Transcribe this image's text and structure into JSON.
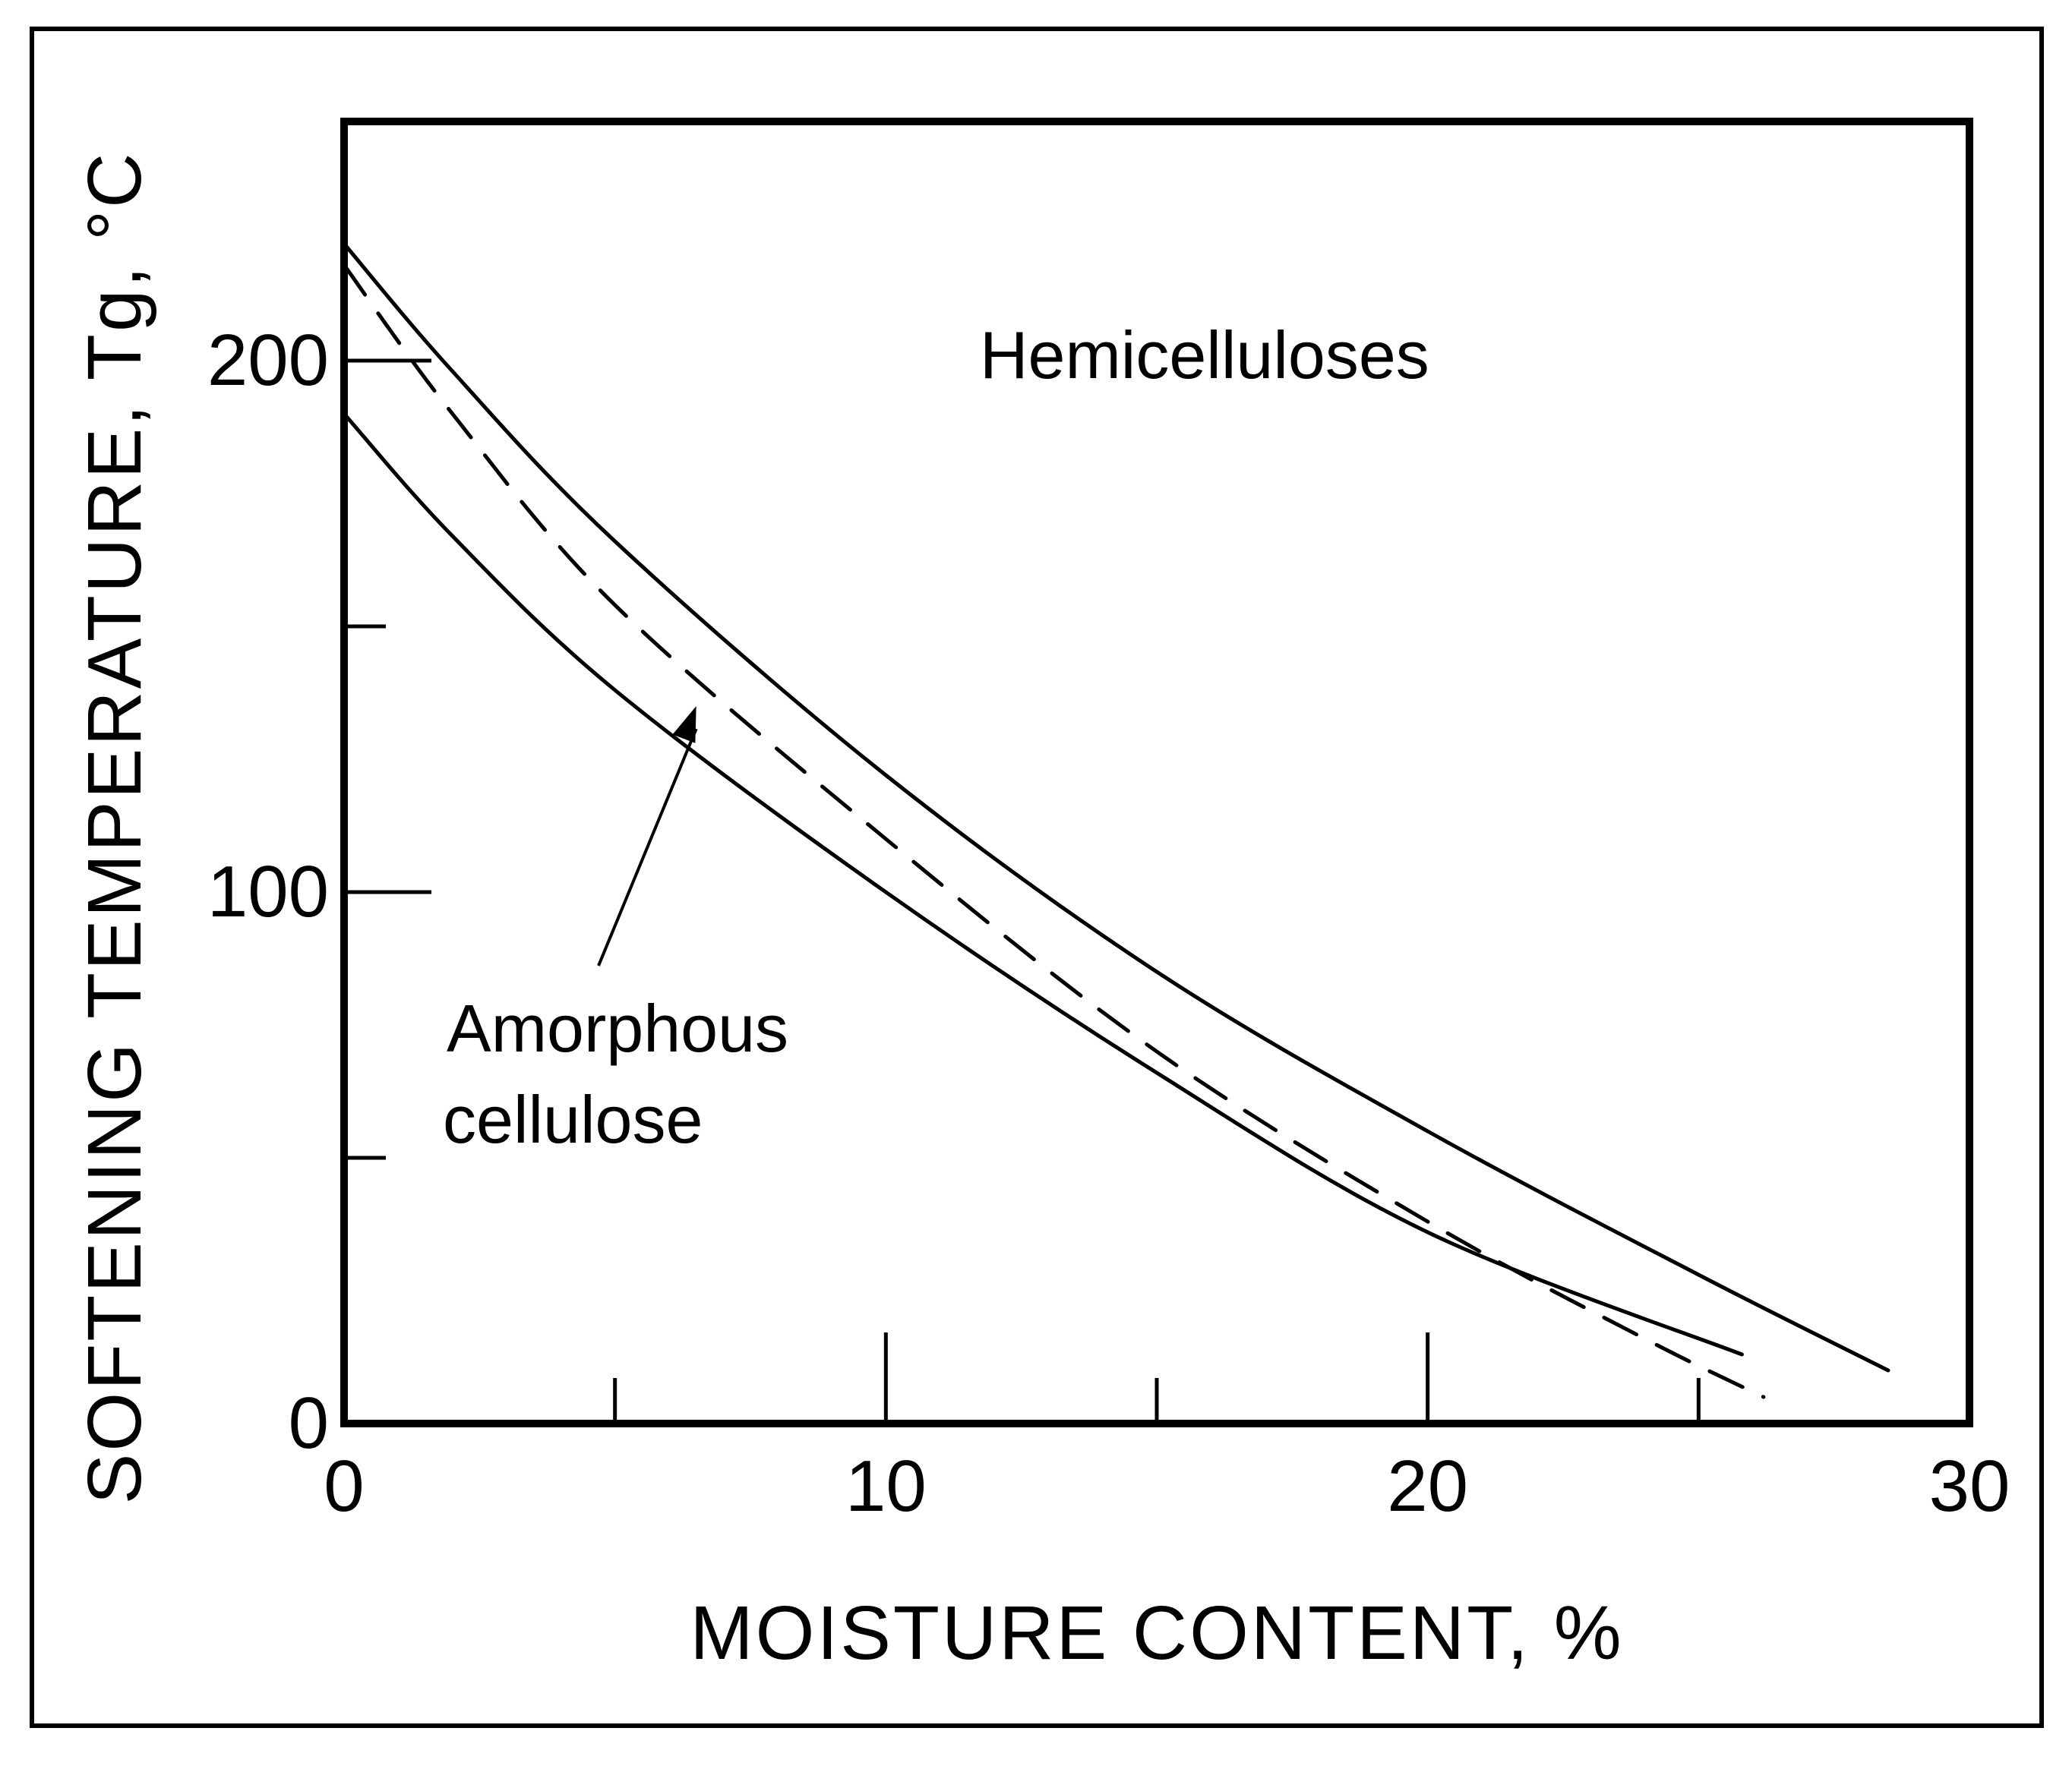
{
  "chart_data": {
    "type": "line",
    "title": "",
    "xlabel": "MOISTURE CONTENT, %",
    "ylabel": "SOFTENING TEMPERATURE, Tg, °C",
    "xlim": [
      0,
      30
    ],
    "ylim": [
      0,
      245
    ],
    "x_ticks": [
      {
        "value": 0,
        "label": "0"
      },
      {
        "value": 10,
        "label": "10"
      },
      {
        "value": 20,
        "label": "20"
      },
      {
        "value": 30,
        "label": "30"
      }
    ],
    "x_minor_ticks": [
      5,
      15,
      25
    ],
    "y_ticks": [
      {
        "value": 0,
        "label": "0"
      },
      {
        "value": 100,
        "label": "100"
      },
      {
        "value": 200,
        "label": "200"
      }
    ],
    "y_minor_ticks": [
      50,
      150
    ],
    "grid": false,
    "series": [
      {
        "style": "solid",
        "x": [
          0,
          2,
          5,
          10,
          15,
          20,
          25,
          28.5
        ],
        "y": [
          222,
          198,
          166,
          122,
          85,
          55,
          28,
          10
        ]
      },
      {
        "style": "solid",
        "x": [
          0,
          2,
          5,
          10,
          15,
          20,
          25.8
        ],
        "y": [
          190,
          167,
          138,
          100,
          66,
          36,
          13
        ]
      },
      {
        "style": "dashed",
        "x": [
          0,
          2,
          5,
          10,
          15,
          20,
          24,
          26.2
        ],
        "y": [
          218,
          190,
          154,
          110,
          70,
          38,
          16,
          5
        ]
      }
    ],
    "annotations": [
      {
        "text": "Hemicelluloses"
      },
      {
        "text_lines": [
          "Amorphous",
          "cellulose"
        ],
        "points_to": {
          "x": 6.5,
          "y": 135
        }
      }
    ]
  }
}
